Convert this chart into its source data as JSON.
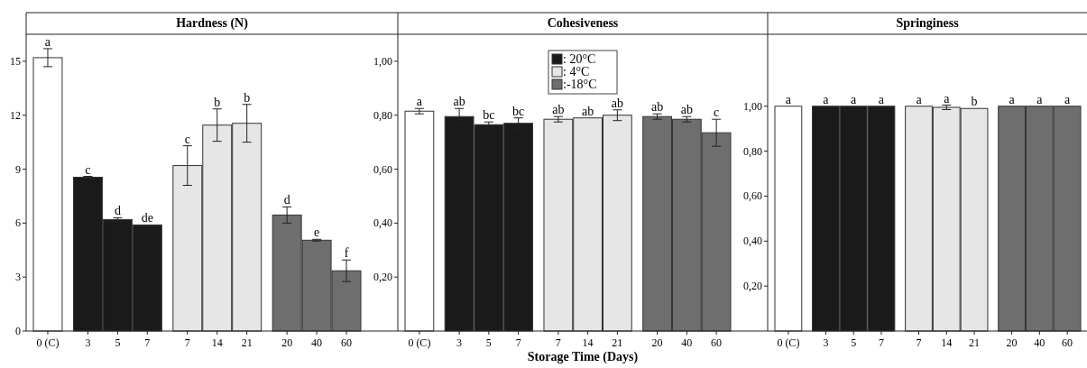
{
  "chart_data": [
    {
      "type": "bar",
      "title": "Hardness (N)",
      "categories": [
        "0 (C)",
        "3",
        "5",
        "7",
        "7",
        "14",
        "21",
        "20",
        "40",
        "60"
      ],
      "ylim": [
        0,
        16.5
      ],
      "yticks": [
        0,
        3,
        6,
        9,
        12,
        15
      ],
      "legend": false,
      "series": [
        {
          "color": "#ffffff",
          "values": [
            15.2,
            null,
            null,
            null,
            null,
            null,
            null,
            null,
            null,
            null
          ],
          "errors": [
            0.5,
            null,
            null,
            null,
            null,
            null,
            null,
            null,
            null,
            null
          ],
          "value_labels": [
            "a",
            null,
            null,
            null,
            null,
            null,
            null,
            null,
            null,
            null
          ]
        },
        {
          "color": "#1a1a1a",
          "values": [
            null,
            8.55,
            6.2,
            5.9,
            null,
            null,
            null,
            null,
            null,
            null
          ],
          "errors": [
            null,
            0.05,
            0.1,
            null,
            null,
            null,
            null,
            null,
            null,
            null
          ],
          "value_labels": [
            null,
            "c",
            "d",
            "de",
            null,
            null,
            null,
            null,
            null,
            null
          ]
        },
        {
          "color": "#e6e6e6",
          "values": [
            null,
            null,
            null,
            null,
            9.2,
            11.45,
            11.55,
            null,
            null,
            null
          ],
          "errors": [
            null,
            null,
            null,
            null,
            1.1,
            0.9,
            1.05,
            null,
            null,
            null
          ],
          "value_labels": [
            null,
            null,
            null,
            null,
            "c",
            "b",
            "b",
            null,
            null,
            null
          ]
        },
        {
          "color": "#6e6e6e",
          "values": [
            null,
            null,
            null,
            null,
            null,
            null,
            null,
            6.45,
            5.05,
            3.35
          ],
          "errors": [
            null,
            null,
            null,
            null,
            null,
            null,
            null,
            0.45,
            0.05,
            0.6
          ],
          "value_labels": [
            null,
            null,
            null,
            null,
            null,
            null,
            null,
            "d",
            "e",
            "f"
          ]
        }
      ]
    },
    {
      "type": "bar",
      "title": "Cohesiveness",
      "xlabel": "Storage Time (Days)",
      "categories": [
        "0 (C)",
        "3",
        "5",
        "7",
        "7",
        "14",
        "21",
        "20",
        "40",
        "60"
      ],
      "ylim": [
        0,
        1.1
      ],
      "yticks": [
        {
          "value": 0.2,
          "label": "0,20"
        },
        {
          "value": 0.4,
          "label": "0,40"
        },
        {
          "value": 0.6,
          "label": "0,60"
        },
        {
          "value": 0.8,
          "label": "0,80"
        },
        {
          "value": 1,
          "label": "1,00"
        }
      ],
      "legend": "top",
      "series": [
        {
          "color": "#ffffff",
          "values": [
            0.815,
            null,
            null,
            null,
            null,
            null,
            null,
            null,
            null,
            null
          ],
          "errors": [
            0.01,
            null,
            null,
            null,
            null,
            null,
            null,
            null,
            null,
            null
          ],
          "value_labels": [
            "a",
            null,
            null,
            null,
            null,
            null,
            null,
            null,
            null,
            null
          ]
        },
        {
          "name": ": 20°C",
          "color": "#1a1a1a",
          "values": [
            null,
            0.795,
            0.765,
            0.77,
            null,
            null,
            null,
            null,
            null,
            null
          ],
          "errors": [
            null,
            0.03,
            0.01,
            0.02,
            null,
            null,
            null,
            null,
            null,
            null
          ],
          "value_labels": [
            null,
            "ab",
            "bc",
            "bc",
            null,
            null,
            null,
            null,
            null,
            null
          ]
        },
        {
          "name": ": 4°C",
          "color": "#e6e6e6",
          "values": [
            null,
            null,
            null,
            null,
            0.785,
            0.79,
            0.8,
            null,
            null,
            null
          ],
          "errors": [
            null,
            null,
            null,
            null,
            0.01,
            null,
            0.02,
            null,
            null,
            null
          ],
          "value_labels": [
            null,
            null,
            null,
            null,
            "ab",
            "ab",
            "ab",
            null,
            null,
            null
          ]
        },
        {
          "name": ":-18°C",
          "color": "#6e6e6e",
          "values": [
            null,
            null,
            null,
            null,
            null,
            null,
            null,
            0.795,
            0.785,
            0.735
          ],
          "errors": [
            null,
            null,
            null,
            null,
            null,
            null,
            null,
            0.01,
            0.01,
            0.05
          ],
          "value_labels": [
            null,
            null,
            null,
            null,
            null,
            null,
            null,
            "ab",
            "ab",
            "c"
          ]
        }
      ]
    },
    {
      "type": "bar",
      "title": "Springiness",
      "categories": [
        "0 (C)",
        "3",
        "5",
        "7",
        "7",
        "14",
        "21",
        "20",
        "40",
        "60"
      ],
      "ylim": [
        0,
        1.32
      ],
      "yticks": [
        {
          "value": 0.2,
          "label": "0,20"
        },
        {
          "value": 0.4,
          "label": "0,40"
        },
        {
          "value": 0.6,
          "label": "0,60"
        },
        {
          "value": 0.8,
          "label": "0,80"
        },
        {
          "value": 1,
          "label": "1,00"
        }
      ],
      "legend": false,
      "series": [
        {
          "color": "#ffffff",
          "values": [
            1,
            null,
            null,
            null,
            null,
            null,
            null,
            null,
            null,
            null
          ],
          "value_labels": [
            "a",
            null,
            null,
            null,
            null,
            null,
            null,
            null,
            null,
            null
          ]
        },
        {
          "color": "#1a1a1a",
          "values": [
            null,
            1,
            1,
            1,
            null,
            null,
            null,
            null,
            null,
            null
          ],
          "value_labels": [
            null,
            "a",
            "a",
            "a",
            null,
            null,
            null,
            null,
            null,
            null
          ]
        },
        {
          "color": "#e6e6e6",
          "values": [
            null,
            null,
            null,
            null,
            1,
            0.995,
            0.99,
            null,
            null,
            null
          ],
          "errors": [
            null,
            null,
            null,
            null,
            null,
            0.01,
            null,
            null,
            null,
            null
          ],
          "value_labels": [
            null,
            null,
            null,
            null,
            "a",
            "a",
            "b",
            null,
            null,
            null
          ]
        },
        {
          "color": "#6e6e6e",
          "values": [
            null,
            null,
            null,
            null,
            null,
            null,
            null,
            1,
            1,
            1
          ],
          "value_labels": [
            null,
            null,
            null,
            null,
            null,
            null,
            null,
            "a",
            "a",
            "a"
          ]
        }
      ]
    }
  ]
}
